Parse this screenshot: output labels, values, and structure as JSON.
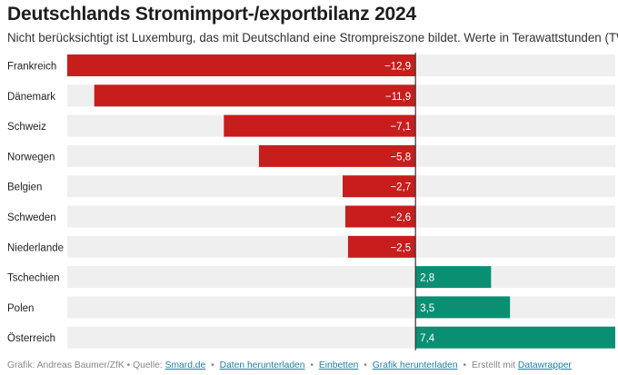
{
  "header": {
    "title": "Deutschlands Stromimport-/exportbilanz 2024",
    "subtitle": "Nicht berücksichtigt ist Luxemburg, das mit Deutschland eine Strompreiszone bildet. Werte in Terawattstunden (TWh)"
  },
  "chart_data": {
    "type": "bar",
    "orientation": "horizontal",
    "categories": [
      "Frankreich",
      "Dänemark",
      "Schweiz",
      "Norwegen",
      "Belgien",
      "Schweden",
      "Niederlande",
      "Tschechien",
      "Polen",
      "Österreich"
    ],
    "values": [
      -12.9,
      -11.9,
      -7.1,
      -5.8,
      -2.7,
      -2.6,
      -2.5,
      2.8,
      3.5,
      7.4
    ],
    "value_labels": [
      "−12,9",
      "−11,9",
      "−7,1",
      "−5,8",
      "−2,7",
      "−2,6",
      "−2,5",
      "2,8",
      "3,5",
      "7,4"
    ],
    "xlim": [
      -12.9,
      7.4
    ],
    "unit": "TWh",
    "colors": {
      "negative": "#c71e1d",
      "positive": "#0b8f72",
      "track": "#efefef",
      "zero_line": "#333333"
    }
  },
  "footer": {
    "credit": "Grafik: Andreas Baumer/ZfK • Quelle:",
    "source_link": "Smard.de",
    "download_data": "Daten herunterladen",
    "embed": "Einbetten",
    "download_image": "Grafik herunterladen",
    "made_with": "Erstellt mit",
    "datawrapper": "Datawrapper",
    "separator": "•"
  }
}
